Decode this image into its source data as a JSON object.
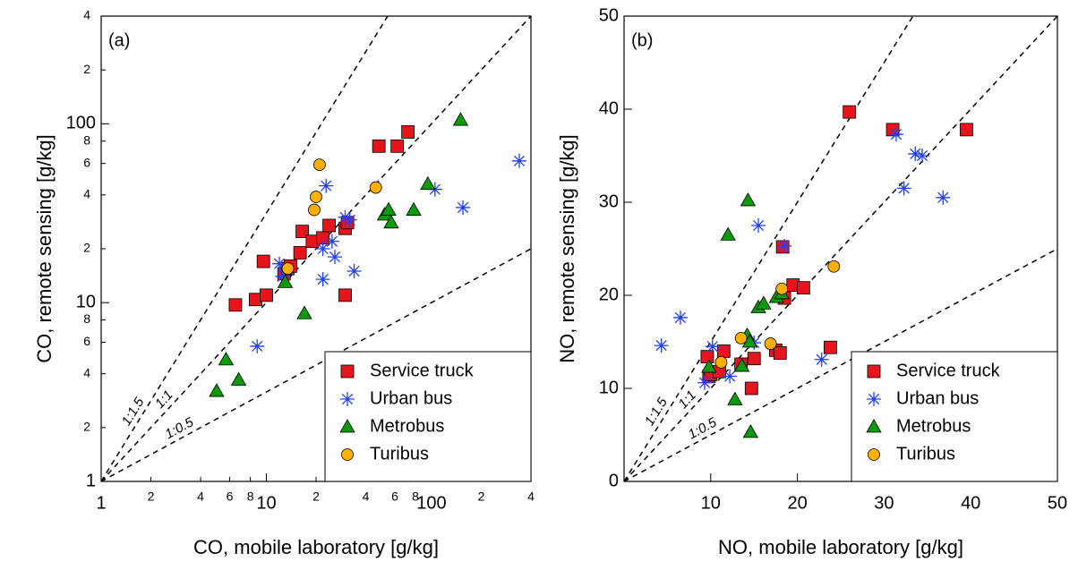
{
  "chart_data": [
    {
      "type": "scatter",
      "panel_label": "(a)",
      "x_label": "CO, mobile laboratory [g/kg]",
      "y_label": "CO, remote sensing [g/kg]",
      "xscale": "log",
      "yscale": "log",
      "xlim": [
        1,
        400
      ],
      "ylim": [
        1,
        400
      ],
      "xticks": [
        1,
        2,
        4,
        6,
        8,
        10,
        {
          "value": 20,
          "label": "2"
        },
        {
          "value": 40,
          "label": "4"
        },
        {
          "value": 60,
          "label": "6"
        },
        {
          "value": 80,
          "label": "8"
        },
        100,
        {
          "value": 200,
          "label": "2"
        },
        {
          "value": 400,
          "label": "4"
        }
      ],
      "yticks": [
        1,
        2,
        4,
        6,
        8,
        10,
        {
          "value": 20,
          "label": "2"
        },
        {
          "value": 40,
          "label": "4"
        },
        {
          "value": 60,
          "label": "6"
        },
        {
          "value": 80,
          "label": "8"
        },
        100,
        {
          "value": 200,
          "label": "2"
        },
        {
          "value": 400,
          "label": "4"
        }
      ],
      "reference_lines": [
        "1:1.5",
        "1:1",
        "1:0.5"
      ],
      "legend": "lower right",
      "series": [
        {
          "name": "Service truck",
          "marker": "square",
          "color": "#e8141b",
          "x": [
            6.5,
            8.6,
            10,
            9.6,
            12.8,
            13.5,
            14,
            16,
            16.5,
            19,
            22,
            24,
            30,
            31,
            30,
            48,
            62,
            72
          ],
          "values": [
            9.7,
            10.4,
            11,
            17,
            14.5,
            15.5,
            16,
            19,
            25,
            22,
            23,
            27,
            26,
            28,
            11,
            75,
            75,
            90
          ]
        },
        {
          "name": "Urban bus",
          "marker": "asterisk",
          "color": "#1f3fff",
          "x": [
            12,
            12.5,
            22,
            22,
            23,
            25,
            26,
            34,
            32,
            30,
            105,
            155,
            340,
            13,
            8.8
          ],
          "values": [
            16.5,
            14,
            13.5,
            20,
            45,
            22,
            18,
            15,
            29,
            30,
            43,
            34,
            62,
            15,
            5.7
          ]
        },
        {
          "name": "Metrobus",
          "marker": "triangle",
          "color": "#0a9a0a",
          "x": [
            5,
            5.7,
            6.8,
            13,
            17,
            52,
            55,
            57,
            78,
            95,
            150
          ],
          "values": [
            3.2,
            4.8,
            3.7,
            13,
            8.7,
            31,
            33,
            28,
            33,
            46,
            105
          ]
        },
        {
          "name": "Turibus",
          "marker": "circle",
          "color": "#ffb000",
          "x": [
            21,
            20,
            19.5,
            46,
            13.5
          ],
          "values": [
            59,
            39,
            33,
            44,
            15.5
          ]
        }
      ]
    },
    {
      "type": "scatter",
      "panel_label": "(b)",
      "x_label": "NO, mobile laboratory [g/kg]",
      "y_label": "NO, remote sensing [g/kg]",
      "xscale": "linear",
      "yscale": "linear",
      "xlim": [
        0,
        50
      ],
      "ylim": [
        0,
        50
      ],
      "xticks": [
        10,
        20,
        30,
        40,
        50
      ],
      "yticks": [
        0,
        10,
        20,
        30,
        40,
        50
      ],
      "reference_lines": [
        "1:1.5",
        "1:1",
        "1:0.5"
      ],
      "legend": "lower right",
      "series": [
        {
          "name": "Service truck",
          "marker": "square",
          "color": "#e8141b",
          "x": [
            26,
            31,
            39.5,
            18.3,
            9.8,
            9.6,
            10,
            11,
            11.5,
            13.5,
            15,
            14.7,
            17.5,
            18,
            18.5,
            19.5,
            20.7,
            23.8
          ],
          "values": [
            39.7,
            37.8,
            37.8,
            25.2,
            11.3,
            13.4,
            11.5,
            11.8,
            14,
            12.6,
            13.2,
            10,
            14.1,
            13.8,
            19.7,
            21.1,
            20.8,
            14.4
          ]
        },
        {
          "name": "Urban bus",
          "marker": "asterisk",
          "color": "#1f3fff",
          "x": [
            4.3,
            6.5,
            9.3,
            10.2,
            12.2,
            15,
            15.5,
            18.5,
            22.8,
            31.4,
            32.3,
            33.6,
            34.4,
            36.8
          ],
          "values": [
            14.6,
            17.6,
            10.6,
            14.5,
            11.3,
            14.9,
            27.5,
            25.3,
            13.1,
            37.3,
            31.5,
            35.2,
            35,
            30.5
          ]
        },
        {
          "name": "Metrobus",
          "marker": "triangle",
          "color": "#0a9a0a",
          "x": [
            9.8,
            12,
            12.8,
            13.6,
            14.2,
            14.3,
            14.6,
            15.5,
            16.1,
            17.6,
            18.2,
            14.5
          ],
          "values": [
            12.3,
            26.5,
            8.8,
            12.4,
            15.7,
            30.2,
            5.3,
            18.7,
            19.1,
            19.8,
            20.2,
            15
          ]
        },
        {
          "name": "Turibus",
          "marker": "circle",
          "color": "#ffb000",
          "x": [
            11.2,
            13.5,
            16.9,
            18.2,
            24.2
          ],
          "values": [
            12.8,
            15.4,
            14.8,
            20.7,
            23.1
          ]
        }
      ]
    }
  ]
}
